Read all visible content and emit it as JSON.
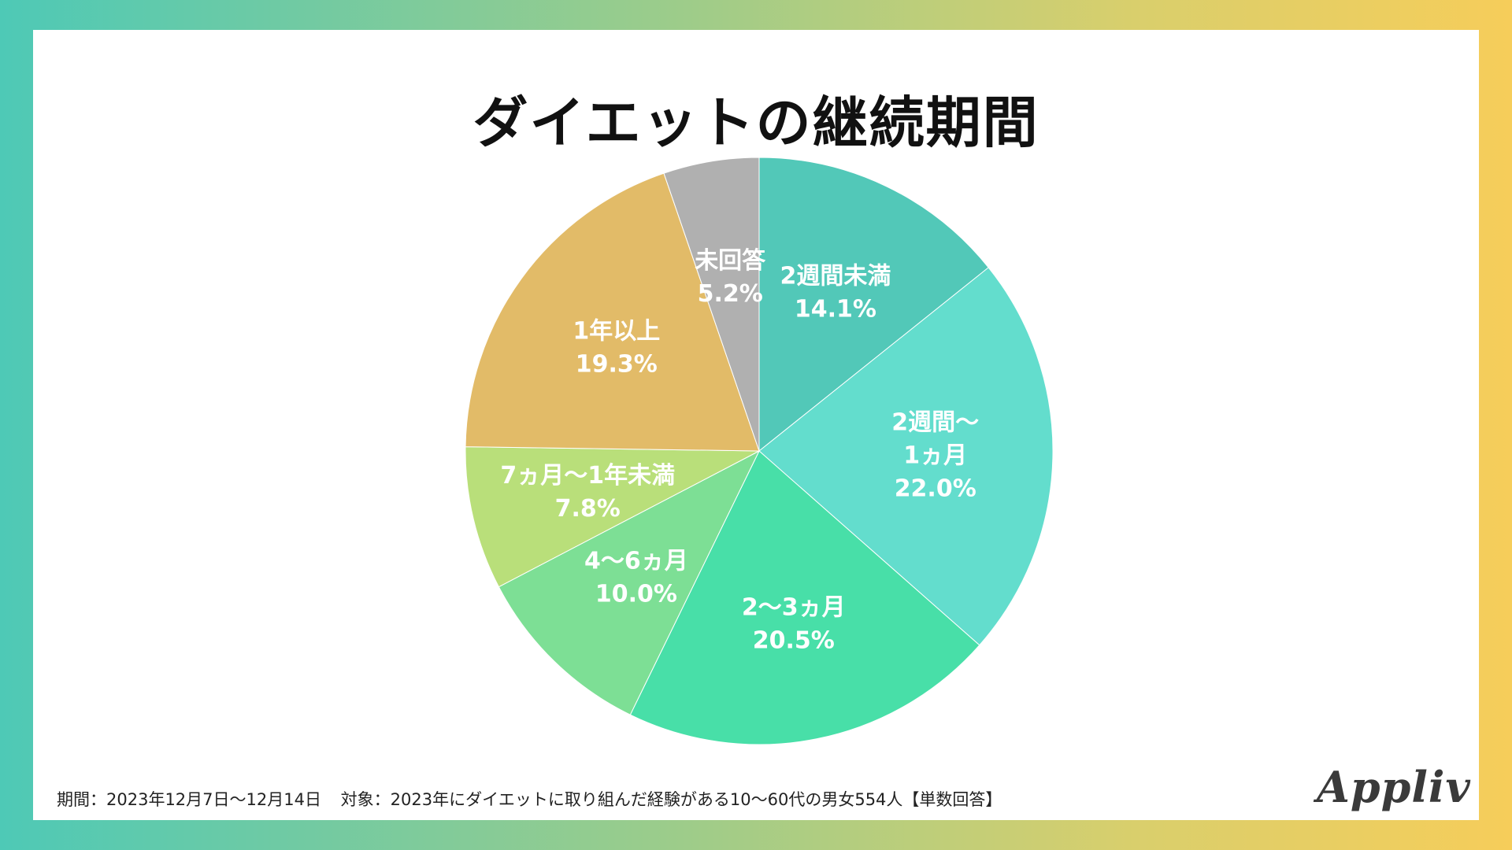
{
  "chart_data": {
    "type": "pie",
    "title": "ダイエットの継続期間",
    "slices": [
      {
        "label": [
          "2週間未満"
        ],
        "value": 14.1,
        "value_label": "14.1%",
        "color": "#52c8b8"
      },
      {
        "label": [
          "2週間〜",
          "1ヵ月"
        ],
        "value": 22.0,
        "value_label": "22.0%",
        "color": "#63ddcd"
      },
      {
        "label": [
          "2〜3ヵ月"
        ],
        "value": 20.5,
        "value_label": "20.5%",
        "color": "#48dfa8"
      },
      {
        "label": [
          "4〜6ヵ月"
        ],
        "value": 10.0,
        "value_label": "10.0%",
        "color": "#7ddf95"
      },
      {
        "label": [
          "7ヵ月〜1年未満"
        ],
        "value": 7.8,
        "value_label": "7.8%",
        "color": "#b9df7a"
      },
      {
        "label": [
          "1年以上"
        ],
        "value": 19.3,
        "value_label": "19.3%",
        "color": "#e2bb68"
      },
      {
        "label": [
          "未回答"
        ],
        "value": 5.2,
        "value_label": "5.2%",
        "color": "#b0b0b0"
      }
    ],
    "start_angle_deg": 0,
    "direction": "clockwise"
  },
  "footer": {
    "period": "期間：2023年12月7日〜12月14日",
    "target": "対象：2023年にダイエットに取り組んだ経験がある10〜60代の男女554人【単数回答】"
  },
  "brand": "Appliv"
}
